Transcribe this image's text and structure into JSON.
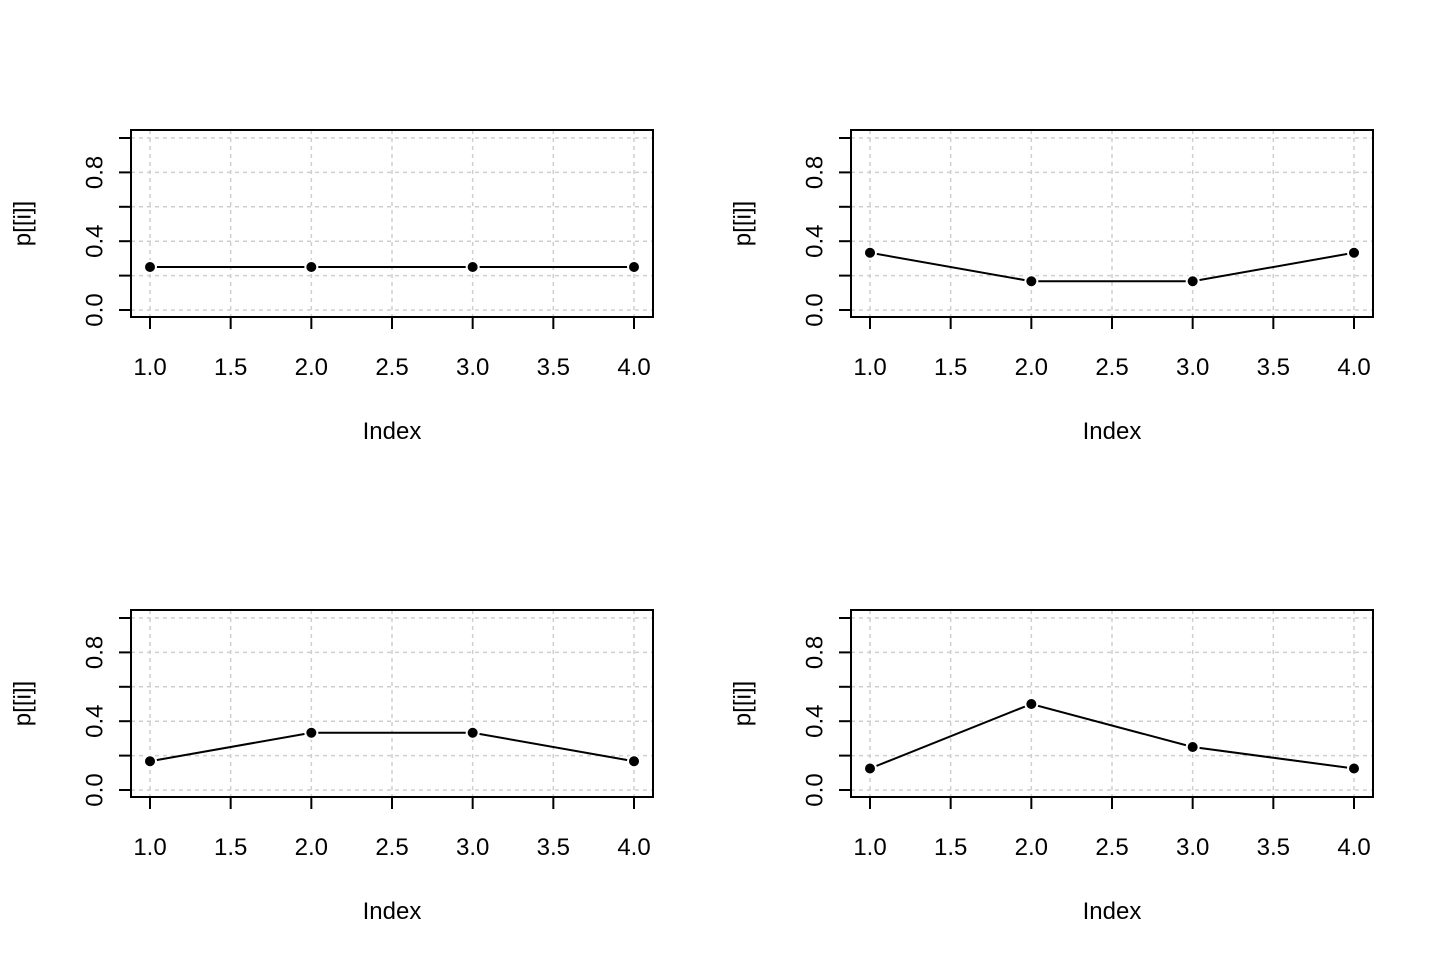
{
  "chart_data": [
    {
      "type": "line",
      "x": [
        1,
        2,
        3,
        4
      ],
      "series": [
        {
          "values": [
            0.25,
            0.25,
            0.25,
            0.25
          ]
        }
      ],
      "xlabel": "Index",
      "ylabel": "p[[i]]",
      "xlim": [
        1,
        4
      ],
      "ylim": [
        0,
        1
      ],
      "x_ticks": [
        "1.0",
        "1.5",
        "2.0",
        "2.5",
        "3.0",
        "3.5",
        "4.0"
      ],
      "y_tick_labels": [
        "0.0",
        "0.4",
        "0.8"
      ],
      "grid": true
    },
    {
      "type": "line",
      "x": [
        1,
        2,
        3,
        4
      ],
      "series": [
        {
          "values": [
            0.333,
            0.167,
            0.167,
            0.333
          ]
        }
      ],
      "xlabel": "Index",
      "ylabel": "p[[i]]",
      "xlim": [
        1,
        4
      ],
      "ylim": [
        0,
        1
      ],
      "x_ticks": [
        "1.0",
        "1.5",
        "2.0",
        "2.5",
        "3.0",
        "3.5",
        "4.0"
      ],
      "y_tick_labels": [
        "0.0",
        "0.4",
        "0.8"
      ],
      "grid": true
    },
    {
      "type": "line",
      "x": [
        1,
        2,
        3,
        4
      ],
      "series": [
        {
          "values": [
            0.167,
            0.333,
            0.333,
            0.167
          ]
        }
      ],
      "xlabel": "Index",
      "ylabel": "p[[i]]",
      "xlim": [
        1,
        4
      ],
      "ylim": [
        0,
        1
      ],
      "x_ticks": [
        "1.0",
        "1.5",
        "2.0",
        "2.5",
        "3.0",
        "3.5",
        "4.0"
      ],
      "y_tick_labels": [
        "0.0",
        "0.4",
        "0.8"
      ],
      "grid": true
    },
    {
      "type": "line",
      "x": [
        1,
        2,
        3,
        4
      ],
      "series": [
        {
          "values": [
            0.125,
            0.5,
            0.25,
            0.125
          ]
        }
      ],
      "xlabel": "Index",
      "ylabel": "p[[i]]",
      "xlim": [
        1,
        4
      ],
      "ylim": [
        0,
        1
      ],
      "x_ticks": [
        "1.0",
        "1.5",
        "2.0",
        "2.5",
        "3.0",
        "3.5",
        "4.0"
      ],
      "y_tick_labels": [
        "0.0",
        "0.4",
        "0.8"
      ],
      "grid": true
    }
  ]
}
